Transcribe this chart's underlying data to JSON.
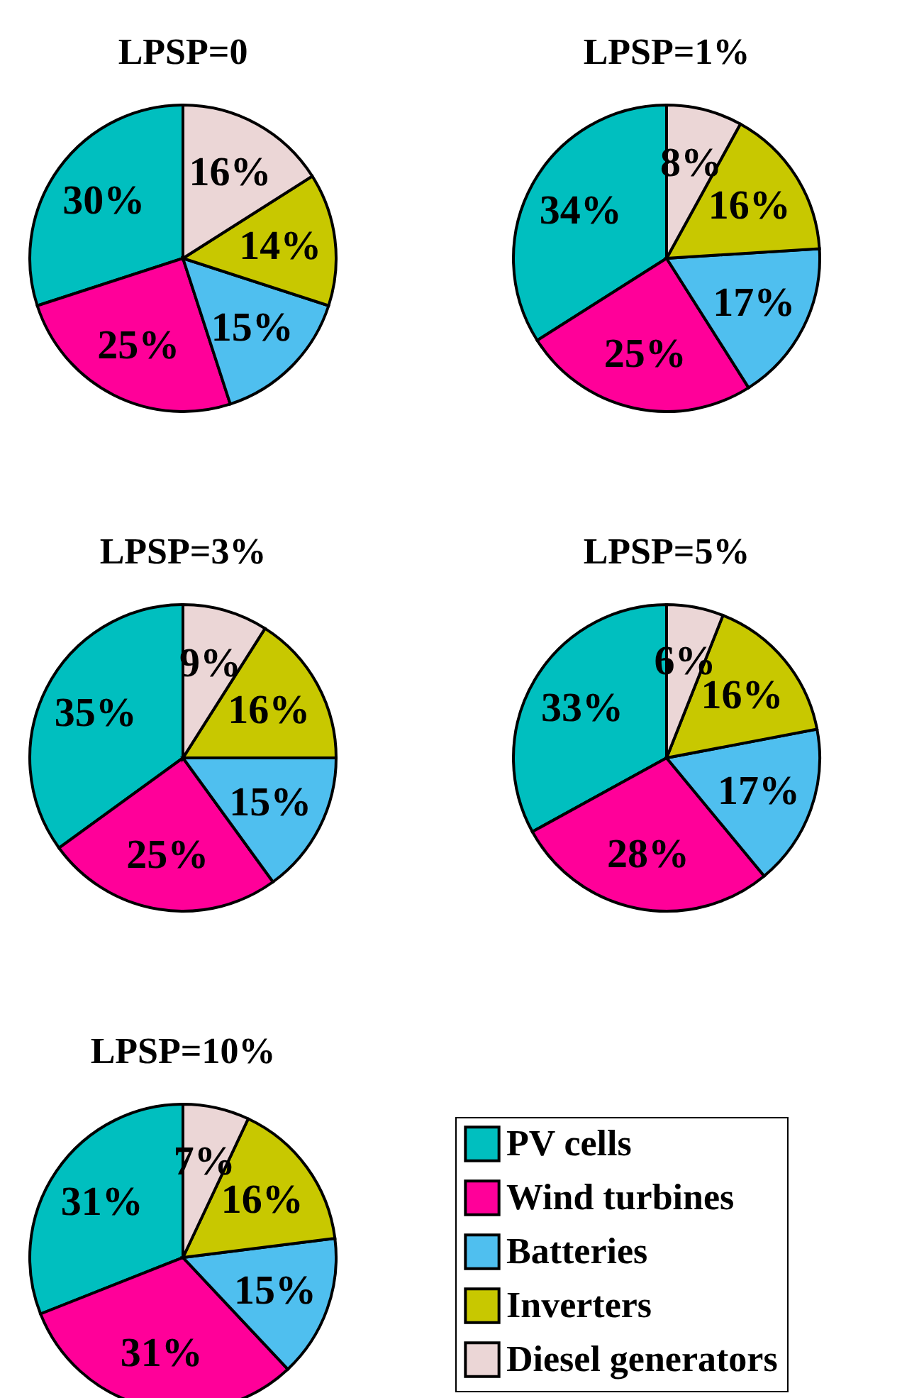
{
  "chart_data": [
    {
      "type": "pie",
      "title": "LPSP=0",
      "categories": [
        null,
        null,
        null,
        null,
        null
      ],
      "values": [
        30,
        25,
        15,
        14,
        16
      ],
      "value_labels": [
        "30%",
        "25%",
        "15%",
        "14%",
        "16%"
      ],
      "colors": [
        "#00bfbf",
        "#ff0099",
        "#4fbfef",
        "#c8c800",
        "#ebd6d6"
      ]
    },
    {
      "type": "pie",
      "title": "LPSP=1%",
      "categories": [
        null,
        null,
        null,
        null,
        null
      ],
      "values": [
        34,
        25,
        17,
        16,
        8
      ],
      "value_labels": [
        "34%",
        "25%",
        "17%",
        "16%",
        "8%"
      ],
      "colors": [
        "#00bfbf",
        "#ff0099",
        "#4fbfef",
        "#c8c800",
        "#ebd6d6"
      ]
    },
    {
      "type": "pie",
      "title": "LPSP=3%",
      "categories": [
        null,
        null,
        null,
        null,
        null
      ],
      "values": [
        35,
        25,
        15,
        16,
        9
      ],
      "value_labels": [
        "35%",
        "25%",
        "15%",
        "16%",
        "9%"
      ],
      "colors": [
        "#00bfbf",
        "#ff0099",
        "#4fbfef",
        "#c8c800",
        "#ebd6d6"
      ]
    },
    {
      "type": "pie",
      "title": "LPSP=5%",
      "categories": [
        null,
        null,
        null,
        null,
        null
      ],
      "values": [
        33,
        28,
        17,
        16,
        6
      ],
      "value_labels": [
        "33%",
        "28%",
        "17%",
        "16%",
        "6%"
      ],
      "colors": [
        "#00bfbf",
        "#ff0099",
        "#4fbfef",
        "#c8c800",
        "#ebd6d6"
      ]
    },
    {
      "type": "pie",
      "title": "LPSP=10%",
      "categories": [
        "PV cells",
        "Wind turbines",
        "Batteries",
        "Inverters",
        "Diesel generators"
      ],
      "values": [
        31,
        31,
        15,
        16,
        7
      ],
      "value_labels": [
        "31%",
        "31%",
        "15%",
        "16%",
        "7%"
      ],
      "colors": [
        "#00bfbf",
        "#ff0099",
        "#4fbfef",
        "#c8c800",
        "#ebd6d6"
      ],
      "legend": "right"
    }
  ]
}
